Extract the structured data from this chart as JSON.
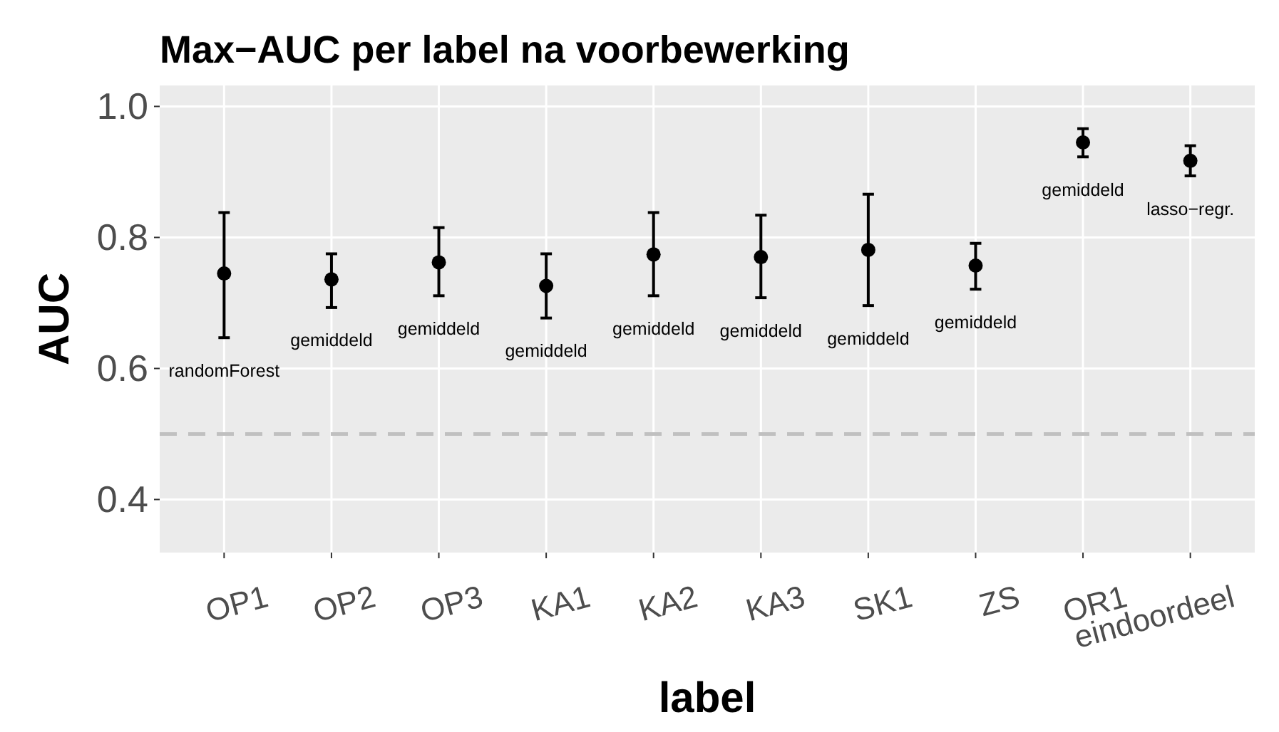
{
  "chart_data": {
    "type": "scatter",
    "title": "Max−AUC per label na voorbewerking",
    "xlabel": "label",
    "ylabel": "AUC",
    "categories": [
      "OP1",
      "OP2",
      "OP3",
      "KA1",
      "KA2",
      "KA3",
      "SK1",
      "ZS",
      "OR1",
      "eindoordeel"
    ],
    "values": [
      0.745,
      0.736,
      0.762,
      0.726,
      0.774,
      0.77,
      0.781,
      0.757,
      0.945,
      0.917
    ],
    "errors": [
      [
        0.647,
        0.838
      ],
      [
        0.693,
        0.775
      ],
      [
        0.711,
        0.815
      ],
      [
        0.677,
        0.775
      ],
      [
        0.711,
        0.838
      ],
      [
        0.708,
        0.834
      ],
      [
        0.696,
        0.866
      ],
      [
        0.721,
        0.791
      ],
      [
        0.923,
        0.966
      ],
      [
        0.894,
        0.94
      ]
    ],
    "color": "#000000",
    "marker": "circle",
    "ylim": [
      0.319,
      1.032
    ],
    "yticks": [
      {
        "value": 0.4,
        "label": "0.4"
      },
      {
        "value": 0.6,
        "label": "0.6"
      },
      {
        "value": 0.8,
        "label": "0.8"
      },
      {
        "value": 1.0,
        "label": "1.0"
      }
    ],
    "grid": true,
    "ref_lines": [
      {
        "axis": "y",
        "value": 0.5,
        "color": "#c0c0c0",
        "line_style": "dashed"
      }
    ],
    "annotations": [
      "randomForest",
      "gemiddeld",
      "gemiddeld",
      "gemiddeld",
      "gemiddeld",
      "gemiddeld",
      "gemiddeld",
      "gemiddeld",
      "gemiddeld",
      "lasso−regr."
    ]
  }
}
